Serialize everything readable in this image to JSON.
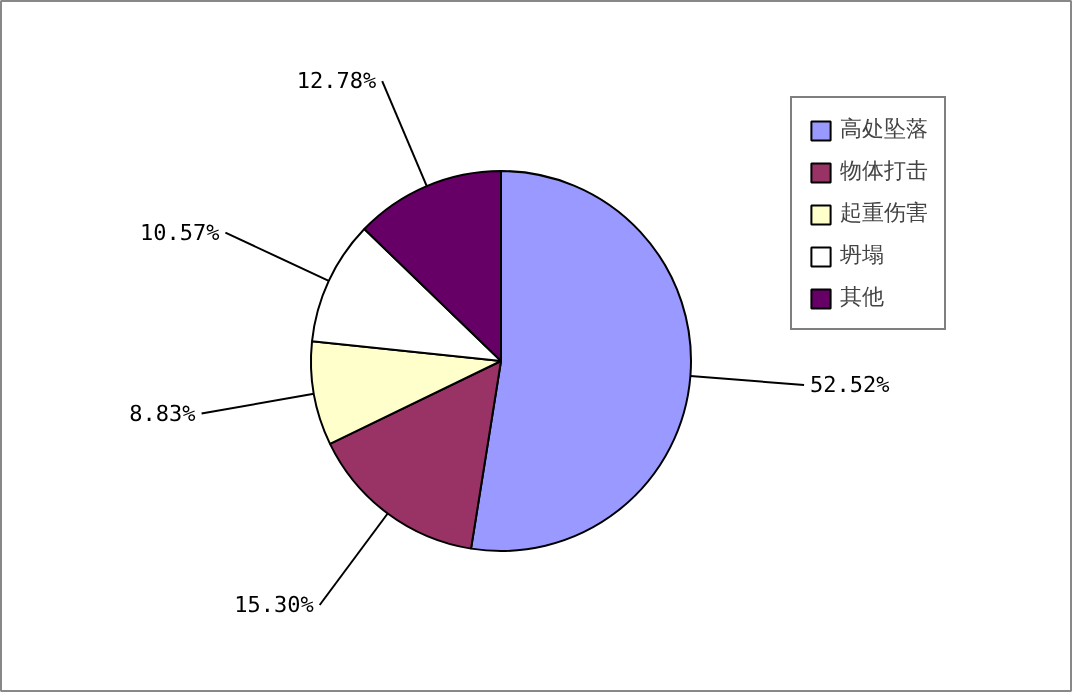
{
  "chart_data": {
    "type": "pie",
    "categories": [
      "高处坠落",
      "物体打击",
      "起重伤害",
      "坍塌",
      "其他"
    ],
    "values": [
      52.52,
      15.3,
      8.83,
      10.57,
      12.78
    ],
    "colors": [
      "#9999ff",
      "#993366",
      "#ffffcc",
      "#ffffff",
      "#660066"
    ],
    "value_labels": [
      "52.52%",
      "15.30%",
      "8.83%",
      "10.57%",
      "12.78%"
    ],
    "legend": "right"
  }
}
